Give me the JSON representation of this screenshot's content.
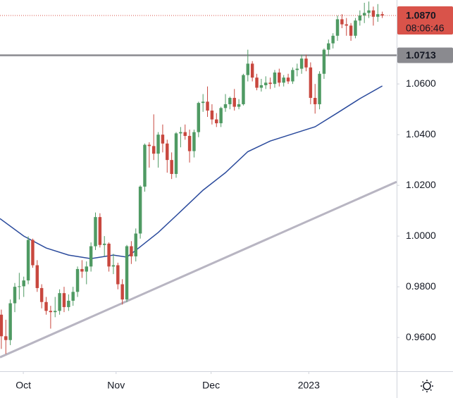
{
  "chart_data": {
    "type": "candlestick",
    "up_color": "#4f9a63",
    "down_color": "#c8473e",
    "x": [
      0,
      1,
      2,
      3,
      4,
      5,
      6,
      7,
      8,
      9,
      10,
      11,
      12,
      13,
      14,
      15,
      16,
      17,
      18,
      19,
      20,
      21,
      22,
      23,
      24,
      25,
      26,
      27,
      28,
      29,
      30,
      31,
      32,
      33,
      34,
      35,
      36,
      37,
      38,
      39,
      40,
      41,
      42,
      43,
      44,
      45,
      46,
      47,
      48,
      49,
      50,
      51,
      52,
      53,
      54,
      55,
      56,
      57,
      58,
      59,
      60,
      61,
      62,
      63,
      64,
      65,
      66,
      67,
      68,
      69,
      70,
      71,
      72,
      73,
      74,
      75,
      76,
      77,
      78,
      79,
      80,
      81,
      82,
      83,
      84,
      85
    ],
    "candles": [
      [
        0.969,
        0.971,
        0.9555,
        0.9605
      ],
      [
        0.9605,
        0.967,
        0.9535,
        0.959
      ],
      [
        0.959,
        0.975,
        0.957,
        0.9735
      ],
      [
        0.9735,
        0.9815,
        0.97,
        0.98
      ],
      [
        0.98,
        0.9855,
        0.975,
        0.9802
      ],
      [
        0.9802,
        0.984,
        0.976,
        0.9825
      ],
      [
        0.9825,
        0.9999,
        0.981,
        0.9985
      ],
      [
        0.9985,
        0.999,
        0.9875,
        0.9885
      ],
      [
        0.9885,
        0.9905,
        0.978,
        0.9795
      ],
      [
        0.9795,
        0.981,
        0.9715,
        0.974
      ],
      [
        0.974,
        0.976,
        0.969,
        0.9705
      ],
      [
        0.9705,
        0.9725,
        0.9635,
        0.97
      ],
      [
        0.97,
        0.976,
        0.968,
        0.9705
      ],
      [
        0.9705,
        0.979,
        0.969,
        0.9775
      ],
      [
        0.9775,
        0.98,
        0.97,
        0.972
      ],
      [
        0.972,
        0.977,
        0.9705,
        0.9745
      ],
      [
        0.9745,
        0.98,
        0.9725,
        0.978
      ],
      [
        0.978,
        0.988,
        0.976,
        0.987
      ],
      [
        0.987,
        0.9905,
        0.9835,
        0.986
      ],
      [
        0.986,
        0.99,
        0.981,
        0.988
      ],
      [
        0.988,
        0.9975,
        0.986,
        0.996
      ],
      [
        0.996,
        1.0093,
        0.9945,
        1.0075
      ],
      [
        1.0075,
        1.009,
        0.9955,
        0.9965
      ],
      [
        0.9965,
        1.0,
        0.992,
        0.997
      ],
      [
        0.997,
        0.9975,
        0.986,
        0.988
      ],
      [
        0.988,
        0.993,
        0.985,
        0.9885
      ],
      [
        0.9885,
        0.9895,
        0.979,
        0.981
      ],
      [
        0.981,
        0.983,
        0.973,
        0.975
      ],
      [
        0.975,
        0.9965,
        0.974,
        0.996
      ],
      [
        0.996,
        0.998,
        0.989,
        0.992
      ],
      [
        0.992,
        1.003,
        0.99,
        1.001
      ],
      [
        1.001,
        1.02,
        0.999,
        1.0195
      ],
      [
        1.0195,
        1.0365,
        1.0175,
        1.036
      ],
      [
        1.036,
        1.037,
        1.027,
        1.0355
      ],
      [
        1.0355,
        1.048,
        1.03,
        1.0325
      ],
      [
        1.0325,
        1.041,
        1.027,
        1.04
      ],
      [
        1.04,
        1.044,
        1.033,
        1.0365
      ],
      [
        1.0365,
        1.038,
        1.025,
        1.03
      ],
      [
        1.03,
        1.033,
        1.0225,
        1.0245
      ],
      [
        1.0245,
        1.041,
        1.023,
        1.0405
      ],
      [
        1.0405,
        1.043,
        1.035,
        1.041
      ],
      [
        1.041,
        1.044,
        1.038,
        1.0395
      ],
      [
        1.0395,
        1.042,
        1.029,
        1.0335
      ],
      [
        1.0335,
        1.042,
        1.031,
        1.041
      ],
      [
        1.041,
        1.053,
        1.039,
        1.0525
      ],
      [
        1.0525,
        1.056,
        1.049,
        1.053
      ],
      [
        1.053,
        1.059,
        1.047,
        1.0495
      ],
      [
        1.0495,
        1.052,
        1.044,
        1.046
      ],
      [
        1.046,
        1.0485,
        1.043,
        1.0445
      ],
      [
        1.0445,
        1.051,
        1.043,
        1.0505
      ],
      [
        1.0505,
        1.056,
        1.049,
        1.052
      ],
      [
        1.052,
        1.055,
        1.05,
        1.0545
      ],
      [
        1.0545,
        1.058,
        1.0495,
        1.051
      ],
      [
        1.051,
        1.054,
        1.05,
        1.052
      ],
      [
        1.052,
        1.064,
        1.0515,
        1.0635
      ],
      [
        1.0635,
        1.0735,
        1.061,
        1.068
      ],
      [
        1.068,
        1.069,
        1.061,
        1.0625
      ],
      [
        1.0625,
        1.064,
        1.0575,
        1.0585
      ],
      [
        1.0585,
        1.062,
        1.057,
        1.0595
      ],
      [
        1.0595,
        1.063,
        1.058,
        1.0605
      ],
      [
        1.0605,
        1.0625,
        1.058,
        1.06
      ],
      [
        1.06,
        1.0655,
        1.0585,
        1.0645
      ],
      [
        1.0645,
        1.066,
        1.059,
        1.0605
      ],
      [
        1.0605,
        1.0635,
        1.059,
        1.0625
      ],
      [
        1.0625,
        1.064,
        1.06,
        1.061
      ],
      [
        1.061,
        1.0665,
        1.06,
        1.0655
      ],
      [
        1.0655,
        1.068,
        1.063,
        1.066
      ],
      [
        1.066,
        1.0715,
        1.064,
        1.07
      ],
      [
        1.07,
        1.0715,
        1.065,
        1.0665
      ],
      [
        1.0665,
        1.0685,
        1.052,
        1.0545
      ],
      [
        1.0545,
        1.06,
        1.0483,
        1.052
      ],
      [
        1.052,
        1.065,
        1.05,
        1.064
      ],
      [
        1.064,
        1.074,
        1.062,
        1.0735
      ],
      [
        1.0735,
        1.0775,
        1.071,
        1.076
      ],
      [
        1.076,
        1.08,
        1.074,
        1.079
      ],
      [
        1.079,
        1.087,
        1.077,
        1.0855
      ],
      [
        1.0855,
        1.0875,
        1.082,
        1.0835
      ],
      [
        1.0835,
        1.086,
        1.079,
        1.083
      ],
      [
        1.083,
        1.084,
        1.077,
        1.079
      ],
      [
        1.079,
        1.086,
        1.078,
        1.085
      ],
      [
        1.085,
        1.089,
        1.083,
        1.087
      ],
      [
        1.087,
        1.092,
        1.084,
        1.088
      ],
      [
        1.088,
        1.0925,
        1.086,
        1.089
      ],
      [
        1.089,
        1.0905,
        1.083,
        1.0865
      ],
      [
        1.0865,
        1.0915,
        1.0845,
        1.0875
      ],
      [
        1.0875,
        1.0885,
        1.086,
        1.087
      ]
    ],
    "moving_average": {
      "color": "#2a4a9c",
      "x": [
        -0.3,
        5,
        10,
        15,
        20,
        25,
        28,
        30,
        35,
        40,
        45,
        50,
        55,
        60,
        65,
        70,
        75,
        80,
        85
      ],
      "values": [
        1.0069,
        1.0,
        0.9953,
        0.9925,
        0.9911,
        0.9925,
        0.9917,
        0.9944,
        1.0014,
        1.0097,
        1.0181,
        1.025,
        1.0333,
        1.0375,
        1.0403,
        1.0431,
        1.0486,
        1.0542,
        1.0592
      ]
    },
    "trendline": {
      "color": "#b8b5c2",
      "x": [
        -0.3,
        88.2
      ],
      "values": [
        0.9522,
        1.0214
      ]
    },
    "horizontal_line": {
      "color": "#8a8a8f",
      "value": {
        "value": 1.0713,
        "label": "1.0713"
      }
    },
    "last_price": {
      "color": "#d9534a",
      "value": {
        "value": 1.087,
        "label": "1.0870"
      },
      "countdown": "08:06:46"
    },
    "xlim": [
      -0.3,
      88.2
    ],
    "xticks": [
      {
        "value": 4.9,
        "label": "Oct"
      },
      {
        "value": 25.6,
        "label": "Nov"
      },
      {
        "value": 46.8,
        "label": "Dec"
      },
      {
        "value": 68.6,
        "label": "2023"
      }
    ],
    "ylim": [
      0.9467,
      1.0931
    ],
    "yticks": [
      {
        "value": 0.96,
        "label": "0.9600"
      },
      {
        "value": 0.98,
        "label": "0.9800"
      },
      {
        "value": 1.0,
        "label": "1.0000"
      },
      {
        "value": 1.02,
        "label": "1.0200"
      },
      {
        "value": 1.04,
        "label": "1.0400"
      },
      {
        "value": 1.06,
        "label": "1.0600"
      }
    ]
  }
}
